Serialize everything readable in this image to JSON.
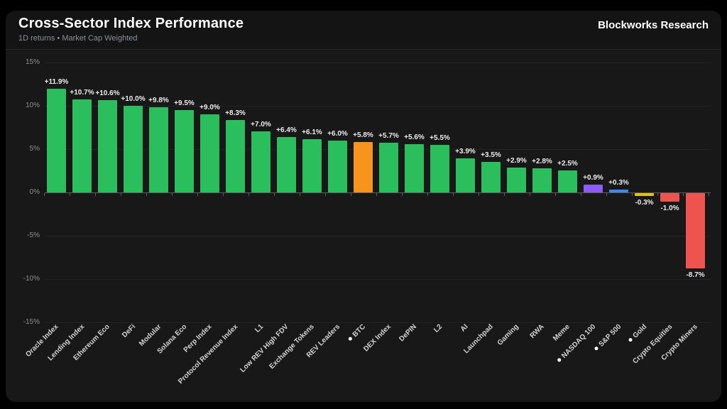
{
  "header": {
    "title": "Cross-Sector Index Performance",
    "subtitle": "1D returns • Market Cap Weighted",
    "brand": "Blockworks Research"
  },
  "theme": {
    "page_bg": "#000000",
    "card_bg": "#181818",
    "header_bg": "#141414",
    "positive_color": "#2bbe5c",
    "negative_color": "#ef5350",
    "btc_color": "#f7941e",
    "nasdaq_color": "#8d5cf6",
    "sp500_color": "#3f87f5",
    "gold_color": "#e5c114"
  },
  "chart_data": {
    "type": "bar",
    "title": "Cross-Sector Index Performance",
    "subtitle": "1D returns • Market Cap Weighted",
    "xlabel": "",
    "ylabel": "",
    "ylim": [
      -15,
      15
    ],
    "yticks": [
      15,
      10,
      5,
      0,
      -5,
      -10,
      -15
    ],
    "ytick_labels": [
      "15%",
      "10%",
      "5%",
      "0%",
      "-5%",
      "-10%",
      "-15%"
    ],
    "grid": true,
    "legend": false,
    "categories": [
      "Oracle Index",
      "Lending Index",
      "Ethereum Eco",
      "DeFi",
      "Modular",
      "Solana Eco",
      "Perp Index",
      "Protocol Revenue Index",
      "L1",
      "Low REV High FDV",
      "Exchange Tokens",
      "REV Leaders",
      "BTC",
      "DEX Index",
      "DePIN",
      "L2",
      "AI",
      "Launchpad",
      "Gaming",
      "RWA",
      "Meme",
      "NASDAQ 100",
      "S&P 500",
      "Gold",
      "Crypto Equities",
      "Crypto Miners"
    ],
    "values": [
      11.9,
      10.7,
      10.6,
      10.0,
      9.8,
      9.5,
      9.0,
      8.3,
      7.0,
      6.4,
      6.1,
      6.0,
      5.8,
      5.7,
      5.6,
      5.5,
      3.9,
      3.5,
      2.9,
      2.8,
      2.5,
      0.9,
      0.3,
      -0.3,
      -1.0,
      -8.7
    ],
    "display_labels": [
      "+11.9%",
      "+10.7%",
      "+10.6%",
      "+10.0%",
      "+9.8%",
      "+9.5%",
      "+9.0%",
      "+8.3%",
      "+7.0%",
      "+6.4%",
      "+6.1%",
      "+6.0%",
      "+5.8%",
      "+5.7%",
      "+5.6%",
      "+5.5%",
      "+3.9%",
      "+3.5%",
      "+2.9%",
      "+2.8%",
      "+2.5%",
      "+0.9%",
      "+0.3%",
      "-0.3%",
      "-1.0%",
      "-8.7%"
    ],
    "bar_colors": [
      "#2bbe5c",
      "#2bbe5c",
      "#2bbe5c",
      "#2bbe5c",
      "#2bbe5c",
      "#2bbe5c",
      "#2bbe5c",
      "#2bbe5c",
      "#2bbe5c",
      "#2bbe5c",
      "#2bbe5c",
      "#2bbe5c",
      "#f7941e",
      "#2bbe5c",
      "#2bbe5c",
      "#2bbe5c",
      "#2bbe5c",
      "#2bbe5c",
      "#2bbe5c",
      "#2bbe5c",
      "#2bbe5c",
      "#8d5cf6",
      "#3f87f5",
      "#e5c114",
      "#ef5350",
      "#ef5350"
    ],
    "benchmark_flags": [
      false,
      false,
      false,
      false,
      false,
      false,
      false,
      false,
      false,
      false,
      false,
      false,
      true,
      false,
      false,
      false,
      false,
      false,
      false,
      false,
      false,
      true,
      true,
      true,
      false,
      false
    ]
  }
}
